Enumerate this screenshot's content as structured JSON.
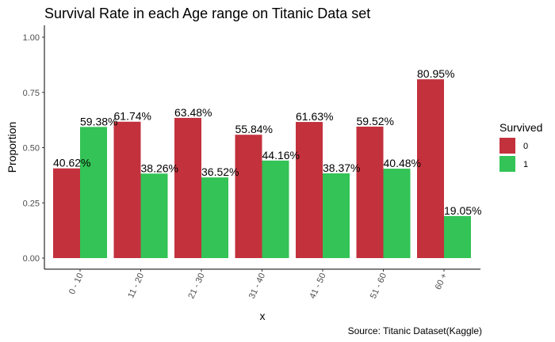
{
  "chart_data": {
    "type": "bar",
    "title": "Survival Rate in each Age range on Titanic Data set",
    "xlabel": "x",
    "ylabel": "Proportion",
    "caption": "Source: Titanic Dataset(Kaggle)",
    "ylim": [
      0,
      1.0
    ],
    "yticks": [
      "0.00",
      "0.25",
      "0.50",
      "0.75",
      "1.00"
    ],
    "ytick_values": [
      0,
      0.25,
      0.5,
      0.75,
      1.0
    ],
    "grid": false,
    "legend": {
      "title": "Survived",
      "placement": "right",
      "entries": [
        "0",
        "1"
      ]
    },
    "categories": [
      "0 - 10",
      "11 - 20",
      "21 - 30",
      "31 - 40",
      "41 - 50",
      "51 - 60",
      "60 +"
    ],
    "series": [
      {
        "name": "0",
        "color": "#c3313d",
        "values": [
          0.4062,
          0.6174,
          0.6348,
          0.5584,
          0.6163,
          0.5952,
          0.8095
        ],
        "labels": [
          "40.62%",
          "61.74%",
          "63.48%",
          "55.84%",
          "61.63%",
          "59.52%",
          "80.95%"
        ]
      },
      {
        "name": "1",
        "color": "#33c356",
        "values": [
          0.5938,
          0.3826,
          0.3652,
          0.4416,
          0.3837,
          0.4048,
          0.1905
        ],
        "labels": [
          "59.38%",
          "38.26%",
          "36.52%",
          "44.16%",
          "38.37%",
          "40.48%",
          "19.05%"
        ]
      }
    ]
  }
}
